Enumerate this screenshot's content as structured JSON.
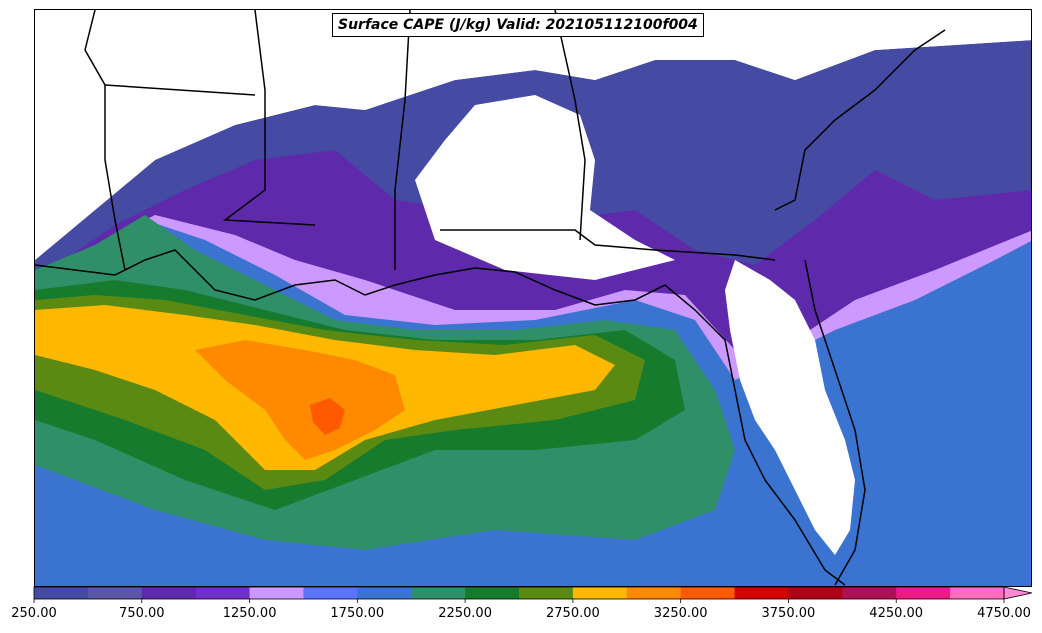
{
  "figure": {
    "title": "Surface CAPE (J/kg) Valid: 202105112100f004"
  },
  "colorbar": {
    "colors": [
      "#454aa2",
      "#5a58a4",
      "#5e2aab",
      "#6f30c8",
      "#cc99ff",
      "#5a74ff",
      "#3a74d0",
      "#2e8f68",
      "#177b2e",
      "#5a8a12",
      "#ffb800",
      "#ff8a00",
      "#ff5a00",
      "#d70000",
      "#b00018",
      "#b01050",
      "#ee1a86",
      "#ff6bbf"
    ],
    "extend_color": "#ff8ad2",
    "ticks": [
      "250.00",
      "750.00",
      "1250.00",
      "1750.00",
      "2250.00",
      "2750.00",
      "3250.00",
      "3750.00",
      "4250.00",
      "4750.00"
    ]
  },
  "map": {
    "background": "#ffffff",
    "field_layers": [
      {
        "level": "250",
        "color": "#454aa2"
      },
      {
        "level": "500",
        "color": "#5a58a4"
      },
      {
        "level": "750",
        "color": "#5e2aab"
      },
      {
        "level": "1000",
        "color": "#6f30c8"
      },
      {
        "level": "1250",
        "color": "#cc99ff"
      },
      {
        "level": "1500",
        "color": "#5a74ff"
      },
      {
        "level": "1750",
        "color": "#3a74d0"
      },
      {
        "level": "2000",
        "color": "#2e8f68"
      },
      {
        "level": "2250",
        "color": "#177b2e"
      },
      {
        "level": "2500",
        "color": "#5a8a12"
      },
      {
        "level": "2750",
        "color": "#ffb800"
      },
      {
        "level": "3000",
        "color": "#ff8a00"
      },
      {
        "level": "3250",
        "color": "#ff5a00"
      }
    ]
  }
}
